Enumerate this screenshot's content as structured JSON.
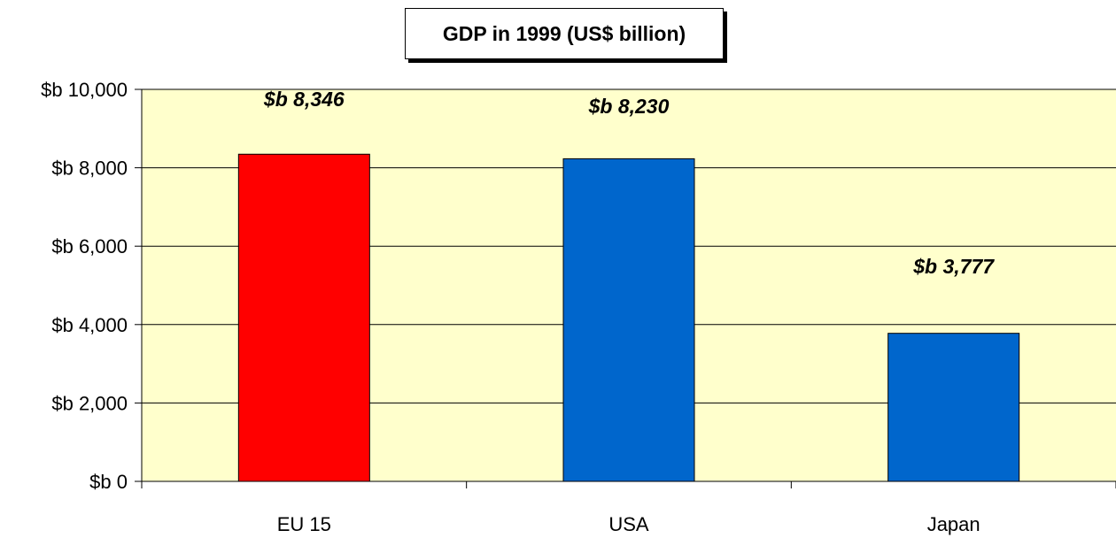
{
  "chart_data": {
    "type": "bar",
    "title": "GDP in 1999 (US$ billion)",
    "xlabel": "",
    "ylabel": "",
    "categories": [
      "EU 15",
      "USA",
      "Japan"
    ],
    "values": [
      8346,
      8230,
      3777
    ],
    "data_labels": [
      "$b 8,346",
      "$b 8,230",
      "$b 3,777"
    ],
    "ylim": [
      0,
      10000
    ],
    "yticks": [
      0,
      2000,
      4000,
      6000,
      8000,
      10000
    ],
    "ytick_labels": [
      "$b 0",
      "$b 2,000",
      "$b 4,000",
      "$b 6,000",
      "$b 8,000",
      "$b 10,000"
    ],
    "bar_colors": [
      "#ff0000",
      "#0066cc",
      "#0066cc"
    ],
    "plot_background": "#ffffcc",
    "grid": true,
    "legend": "none"
  }
}
